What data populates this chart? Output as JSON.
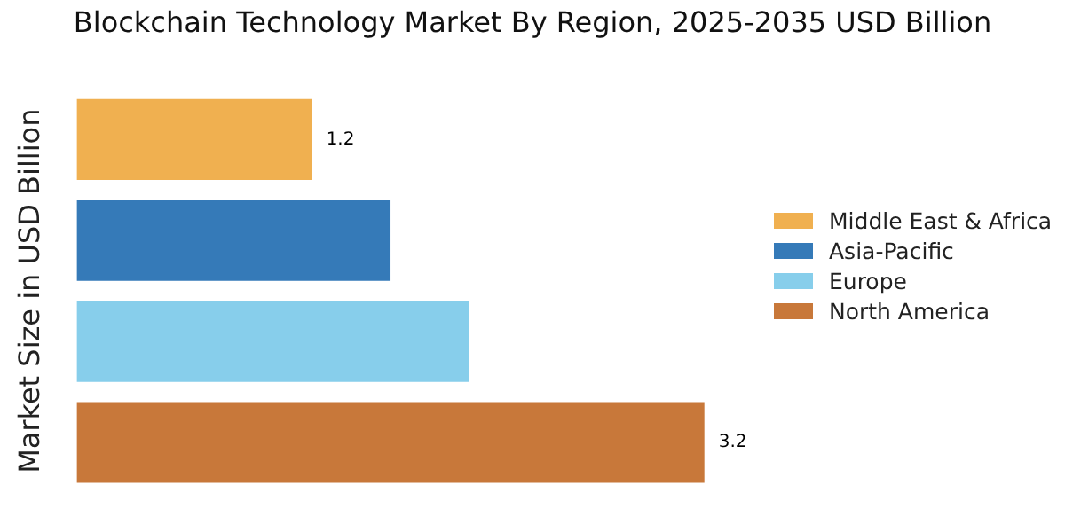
{
  "chart_data": {
    "type": "bar",
    "orientation": "horizontal",
    "stacked": true,
    "title": "Blockchain Technology Market By Region, 2025-2035 USD Billion",
    "ylabel": "Market Size in USD Billion",
    "categories": [
      null,
      null,
      null,
      null
    ],
    "legend": "right",
    "series": [
      {
        "name": "Middle East & Africa",
        "color": "#f0b050",
        "values": [
          1.2,
          null,
          null,
          null
        ],
        "value_labels": [
          "1.2",
          null,
          null,
          null
        ]
      },
      {
        "name": "Asia-Pacific",
        "color": "#357ab8",
        "values": [
          null,
          1.6,
          null,
          null
        ]
      },
      {
        "name": "Europe",
        "color": "#87ceeb",
        "values": [
          null,
          null,
          2.0,
          null
        ]
      },
      {
        "name": "North America",
        "color": "#c8783a",
        "values": [
          null,
          null,
          null,
          3.2
        ],
        "value_labels": [
          null,
          null,
          null,
          "3.2"
        ]
      }
    ]
  }
}
